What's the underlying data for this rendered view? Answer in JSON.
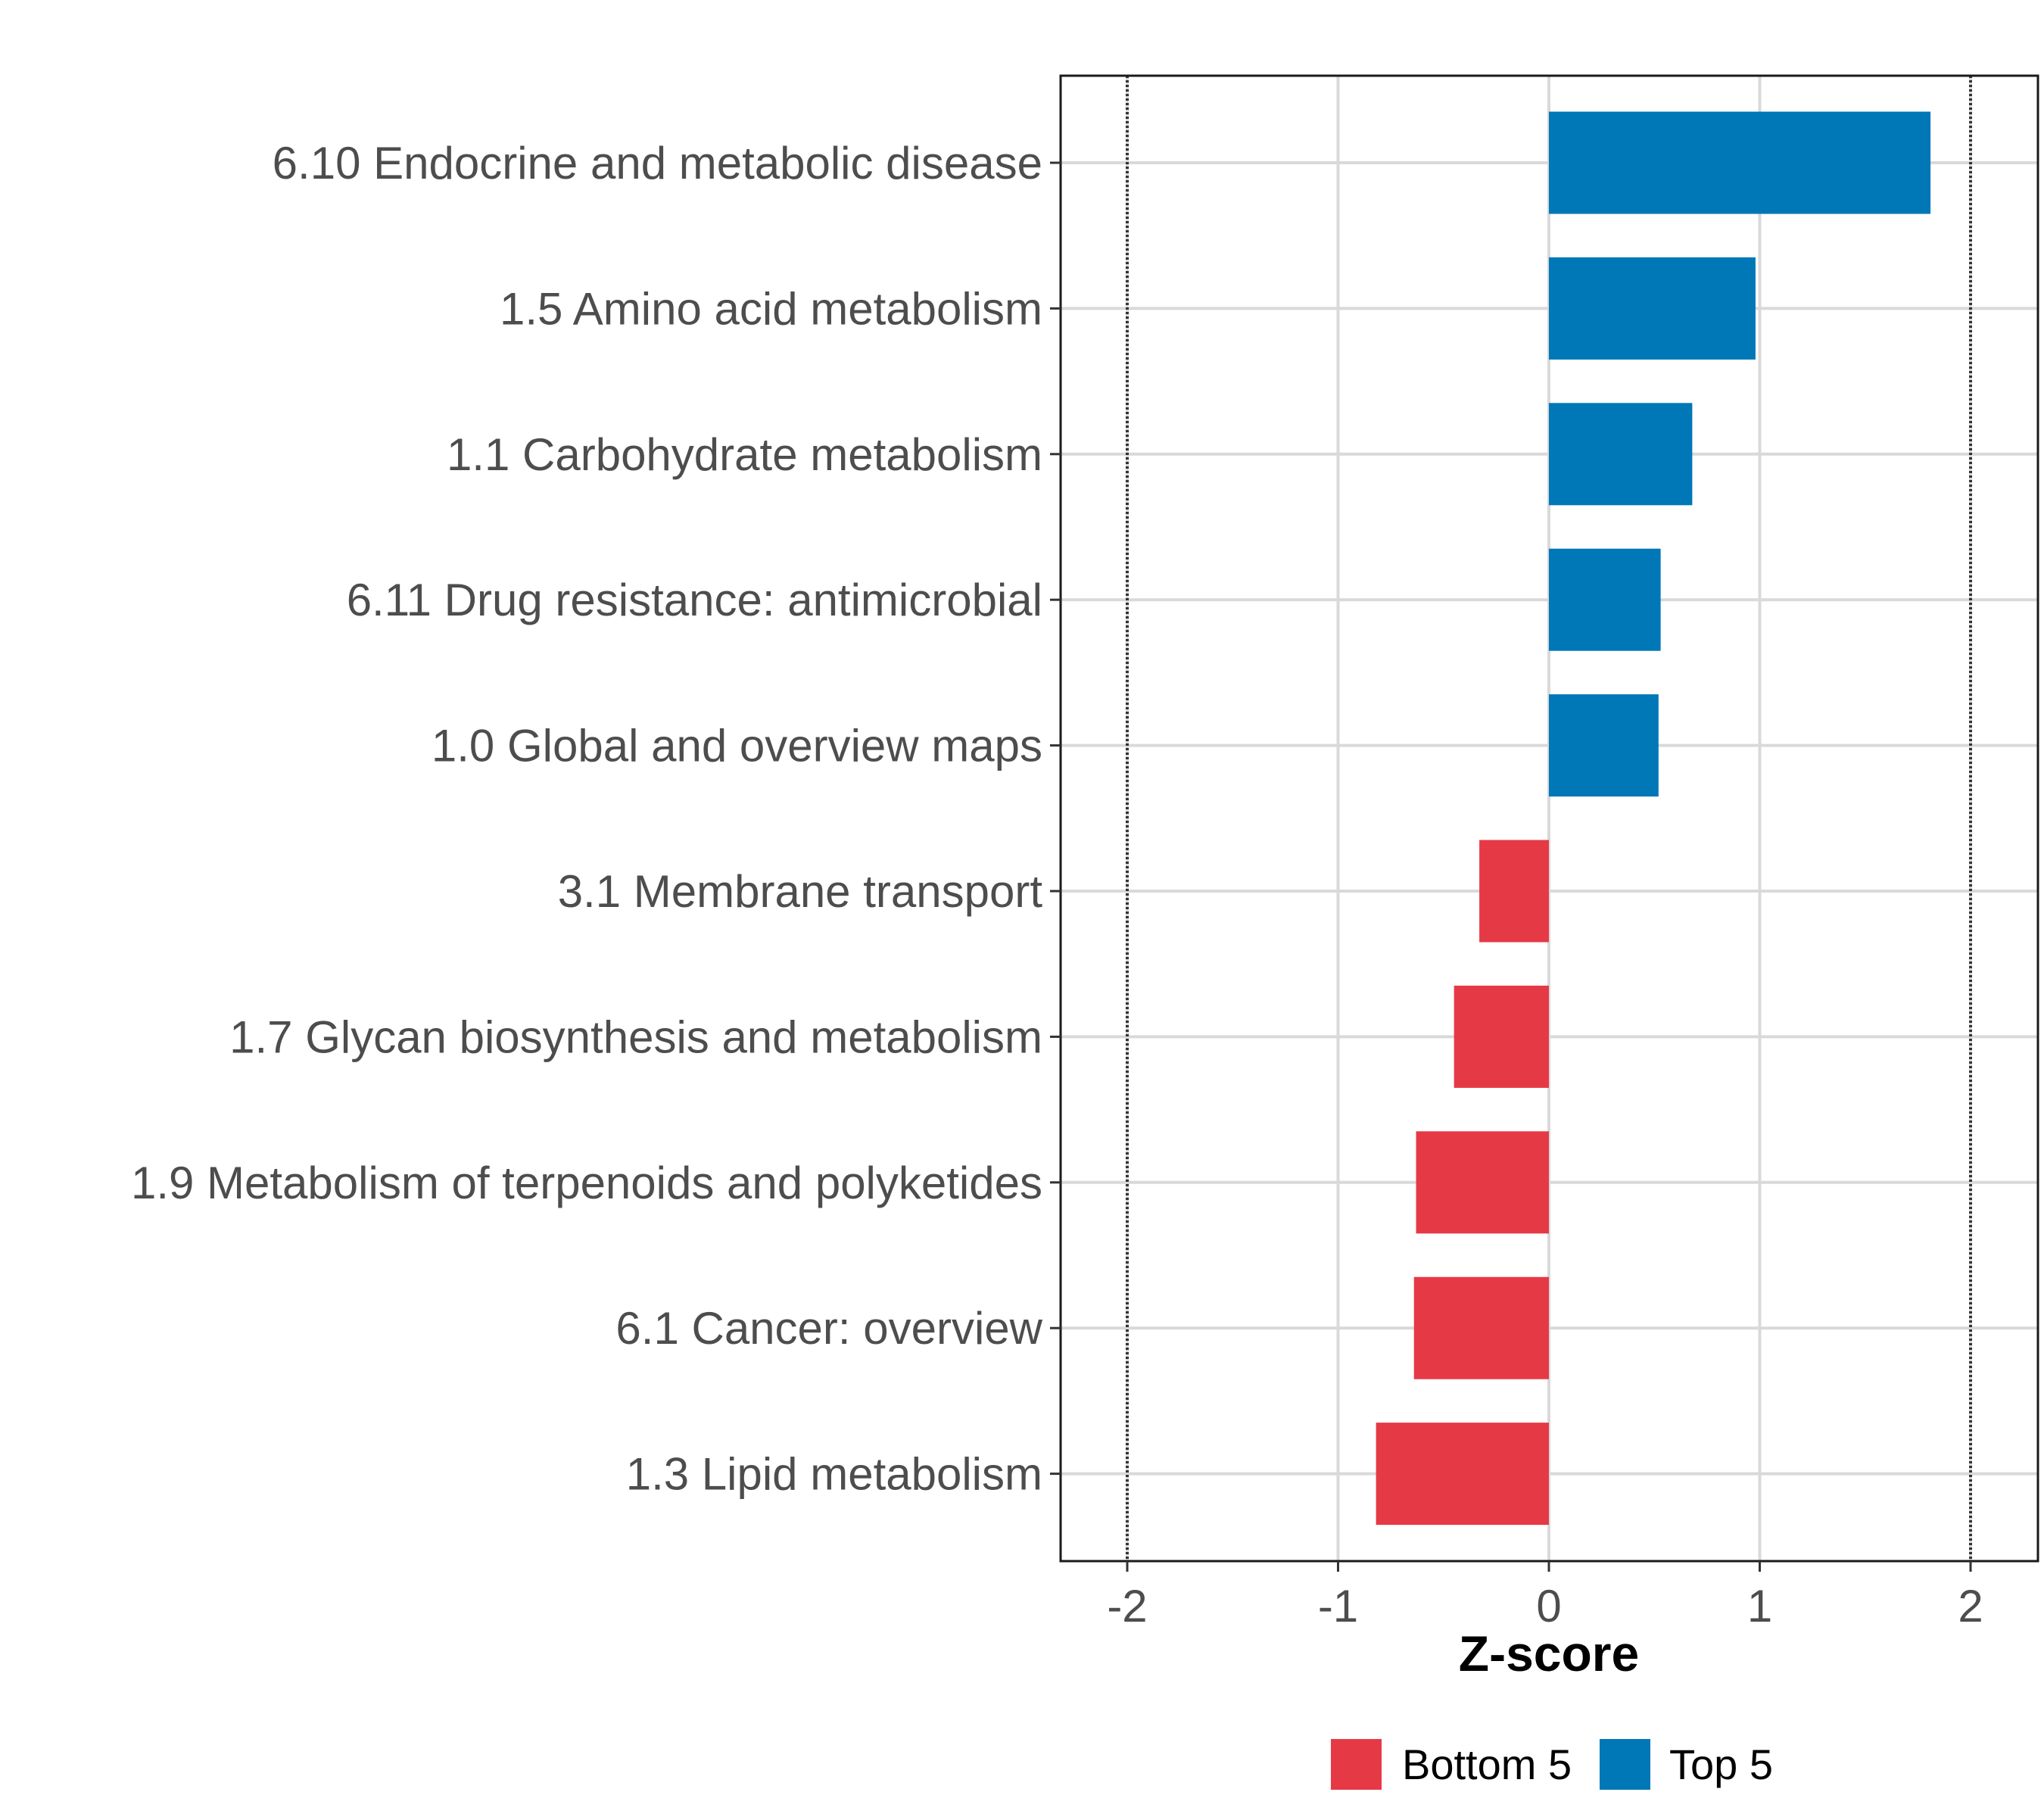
{
  "chart_data": {
    "type": "bar",
    "orientation": "horizontal",
    "title": "",
    "xlabel": "Z-score",
    "ylabel": "",
    "xlim": [
      -2.3,
      2.3
    ],
    "xticks": [
      -2,
      -1,
      0,
      1,
      2
    ],
    "xtick_labels": [
      "-2",
      "-1",
      "0",
      "1",
      "2"
    ],
    "reference_lines": [
      -2,
      2
    ],
    "grid": true,
    "legend_position": "bottom",
    "categories": [
      "6.10 Endocrine and metabolic disease",
      "1.5 Amino acid metabolism",
      "1.1 Carbohydrate metabolism",
      "6.11 Drug resistance: antimicrobial",
      "1.0 Global and overview maps",
      "3.1 Membrane transport",
      "1.7 Glycan biosynthesis and metabolism",
      "1.9 Metabolism of terpenoids and polyketides",
      "6.1 Cancer: overview",
      "1.3 Lipid metabolism"
    ],
    "values": [
      1.81,
      0.98,
      0.68,
      0.53,
      0.52,
      -0.33,
      -0.45,
      -0.63,
      -0.64,
      -0.82
    ],
    "groups": [
      "Top 5",
      "Top 5",
      "Top 5",
      "Top 5",
      "Top 5",
      "Bottom 5",
      "Bottom 5",
      "Bottom 5",
      "Bottom 5",
      "Bottom 5"
    ],
    "legend": [
      {
        "name": "Bottom 5",
        "color": "#e63946"
      },
      {
        "name": "Top 5",
        "color": "#0077b6"
      }
    ]
  }
}
